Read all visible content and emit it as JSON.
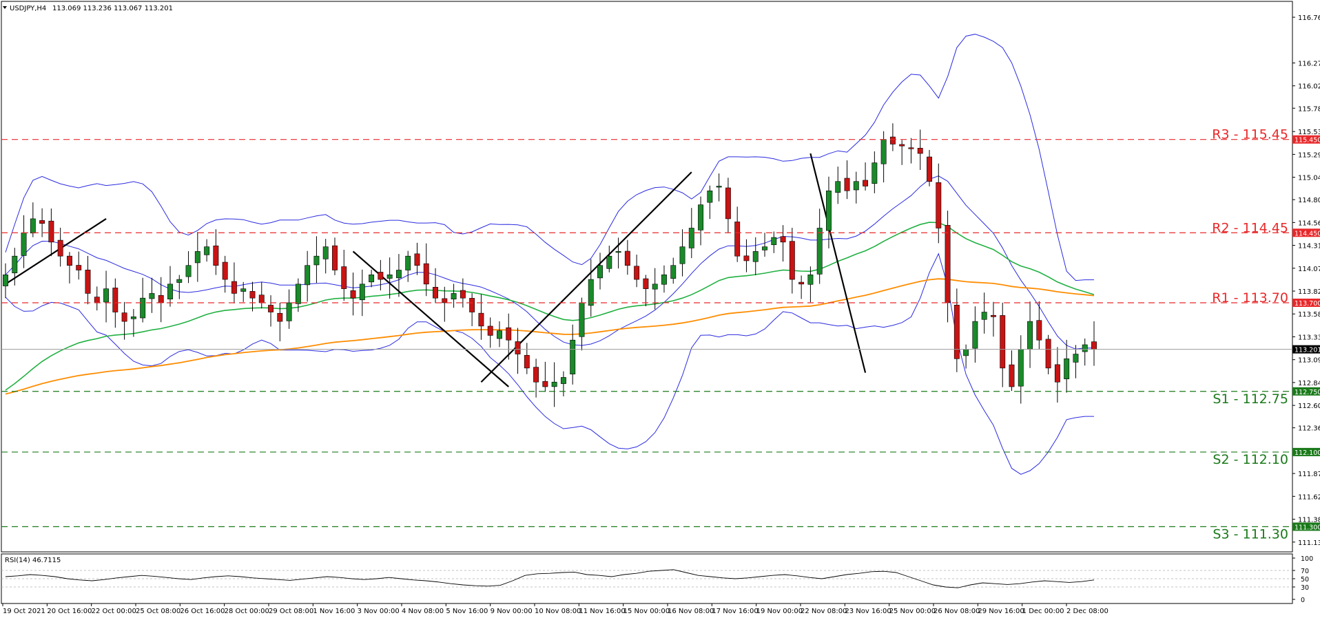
{
  "header": {
    "symbol": "USDJPY,H4",
    "ohlc": "113.069 113.236 113.067 113.201"
  },
  "rsi": {
    "label": "RSI(14) 46.7115",
    "ticks": [
      "100",
      "70",
      "50",
      "30",
      "0"
    ]
  },
  "price_axis": {
    "ticks": [
      "116.760",
      "116.270",
      "116.025",
      "115.785",
      "115.535",
      "115.290",
      "115.045",
      "114.805",
      "114.560",
      "114.315",
      "114.070",
      "113.825",
      "113.580",
      "113.335",
      "113.090",
      "112.845",
      "112.600",
      "112.360",
      "112.115",
      "111.870",
      "111.625",
      "111.380",
      "111.135"
    ],
    "current_price": "113.201"
  },
  "time_axis": [
    "19 Oct 2021",
    "20 Oct 16:00",
    "22 Oct 00:00",
    "25 Oct 08:00",
    "26 Oct 16:00",
    "28 Oct 00:00",
    "29 Oct 08:00",
    "1 Nov 16:00",
    "3 Nov 00:00",
    "4 Nov 08:00",
    "5 Nov 16:00",
    "9 Nov 00:00",
    "10 Nov 08:00",
    "11 Nov 16:00",
    "15 Nov 00:00",
    "16 Nov 08:00",
    "17 Nov 16:00",
    "19 Nov 00:00",
    "22 Nov 08:00",
    "23 Nov 16:00",
    "25 Nov 00:00",
    "26 Nov 08:00",
    "29 Nov 16:00",
    "1 Dec 00:00",
    "2 Dec 08:00"
  ],
  "colors": {
    "bull": "#1a8a2a",
    "bear": "#c81414",
    "bands": "#2a2ae0",
    "ma_green": "#20b040",
    "ma_orange": "#ff8c00",
    "resistance": "#e8282a",
    "support": "#1a7a1a"
  },
  "chart_data": {
    "type": "candlestick",
    "symbol": "USDJPY",
    "timeframe": "H4",
    "ylim": [
      111.03,
      116.93
    ],
    "levels": [
      {
        "name": "R3",
        "value": 115.45,
        "label": "R3 - 115.45",
        "axis_label": "115.450",
        "kind": "resistance"
      },
      {
        "name": "R2",
        "value": 114.45,
        "label": "R2 - 114.45",
        "axis_label": "114.450",
        "kind": "resistance"
      },
      {
        "name": "R1",
        "value": 113.7,
        "label": "R1 - 113.70",
        "axis_label": "113.700",
        "kind": "resistance"
      },
      {
        "name": "S1",
        "value": 112.75,
        "label": "S1 - 112.75",
        "axis_label": "112.750",
        "kind": "support"
      },
      {
        "name": "S2",
        "value": 112.1,
        "label": "S2 - 112.10",
        "axis_label": "112.100",
        "kind": "support"
      },
      {
        "name": "S3",
        "value": 111.3,
        "label": "S3 - 111.30",
        "axis_label": "111.300",
        "kind": "support"
      }
    ],
    "closes": [
      114.0,
      114.2,
      114.45,
      114.6,
      114.55,
      114.35,
      114.2,
      114.1,
      114.05,
      113.8,
      113.7,
      113.85,
      113.6,
      113.5,
      113.55,
      113.75,
      113.8,
      113.7,
      113.9,
      113.95,
      114.1,
      114.25,
      114.3,
      114.1,
      113.95,
      113.8,
      113.85,
      113.75,
      113.7,
      113.6,
      113.5,
      113.7,
      113.9,
      114.1,
      114.2,
      114.3,
      114.05,
      113.85,
      113.75,
      113.9,
      114.0,
      113.95,
      114.0,
      114.05,
      114.2,
      114.1,
      113.9,
      113.75,
      113.7,
      113.8,
      113.75,
      113.6,
      113.45,
      113.35,
      113.4,
      113.3,
      113.15,
      113.0,
      112.85,
      112.8,
      112.85,
      112.9,
      113.3,
      113.7,
      113.95,
      114.1,
      114.2,
      114.25,
      114.1,
      113.95,
      113.85,
      113.9,
      114.0,
      114.1,
      114.3,
      114.5,
      114.75,
      114.9,
      114.95,
      114.6,
      114.2,
      114.15,
      114.25,
      114.3,
      114.4,
      114.35,
      113.95,
      113.9,
      114.0,
      114.5,
      114.9,
      115.0,
      114.9,
      115.0,
      114.95,
      115.2,
      115.45,
      115.4,
      115.38,
      115.35,
      115.3,
      115.0,
      114.5,
      113.7,
      113.1,
      113.2,
      113.5,
      113.6,
      113.55,
      113.0,
      112.8,
      113.2,
      113.5,
      113.3,
      113.0,
      112.85,
      113.1,
      113.15,
      113.25,
      113.2
    ],
    "series": [
      {
        "name": "RSI(14)",
        "values": [
          55,
          57,
          60,
          58,
          55,
          50,
          47,
          45,
          48,
          52,
          55,
          58,
          56,
          53,
          50,
          48,
          52,
          55,
          57,
          55,
          52,
          50,
          48,
          46,
          49,
          52,
          55,
          53,
          50,
          48,
          50,
          53,
          50,
          47,
          45,
          42,
          38,
          35,
          33,
          32,
          34,
          45,
          58,
          62,
          63,
          65,
          66,
          60,
          58,
          55,
          60,
          63,
          68,
          70,
          72,
          65,
          58,
          55,
          52,
          50,
          52,
          55,
          58,
          60,
          57,
          53,
          50,
          55,
          60,
          63,
          67,
          68,
          65,
          55,
          45,
          35,
          30,
          28,
          35,
          40,
          38,
          36,
          38,
          42,
          45,
          43,
          41,
          43,
          47
        ]
      }
    ],
    "annotations": [
      "trendlines (up, down, up, down)",
      "Bollinger Bands",
      "moving averages (green, orange)"
    ]
  }
}
